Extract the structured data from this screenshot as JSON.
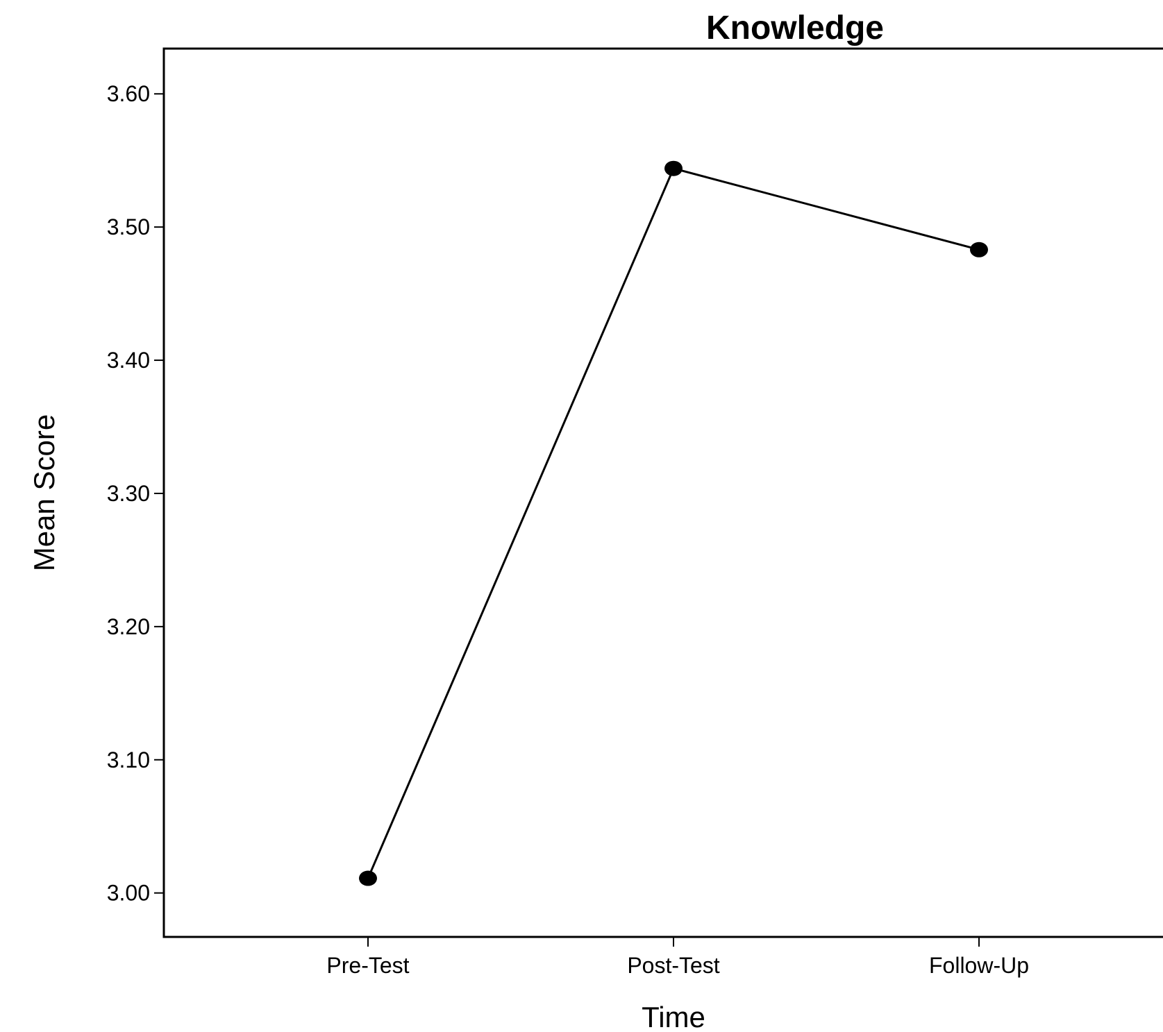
{
  "chart_data": {
    "type": "line",
    "title": "Knowledge",
    "xlabel": "Time",
    "ylabel": "Mean Score",
    "categories": [
      "Pre-Test",
      "Post-Test",
      "Follow-Up"
    ],
    "series": [
      {
        "values": [
          3.011,
          3.544,
          3.483
        ]
      }
    ],
    "ylim": [
      2.967,
      3.634
    ],
    "yticks": [
      "3.00",
      "3.10",
      "3.20",
      "3.30",
      "3.40",
      "3.50",
      "3.60"
    ],
    "grid": false,
    "legend": "none",
    "colors": {
      "line": "#000000",
      "marker": "#000000",
      "frame": "#000000"
    }
  }
}
